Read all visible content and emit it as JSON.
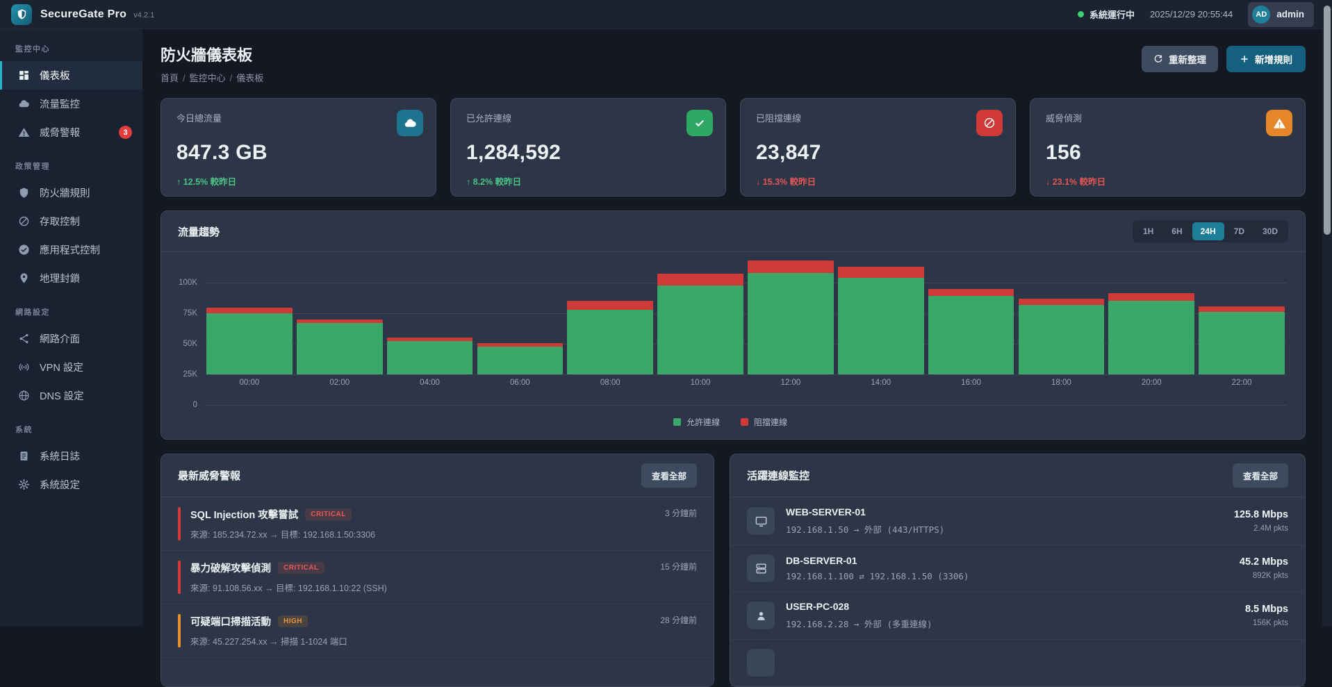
{
  "app": {
    "name": "SecureGate Pro",
    "version": "v4.2.1",
    "status_text": "系統運行中",
    "timestamp": "2025/12/29 20:55:44",
    "user_initials": "AD",
    "user_name": "admin"
  },
  "sidebar": {
    "sections": [
      {
        "label": "監控中心",
        "items": [
          {
            "label": "儀表板",
            "icon": "dashboard-icon",
            "active": true
          },
          {
            "label": "流量監控",
            "icon": "cloud-icon"
          },
          {
            "label": "威脅警報",
            "icon": "alert-triangle-icon",
            "badge": "3"
          }
        ]
      },
      {
        "label": "政策管理",
        "items": [
          {
            "label": "防火牆規則",
            "icon": "shield-icon"
          },
          {
            "label": "存取控制",
            "icon": "no-entry-icon"
          },
          {
            "label": "應用程式控制",
            "icon": "check-circle-icon"
          },
          {
            "label": "地理封鎖",
            "icon": "pin-icon"
          }
        ]
      },
      {
        "label": "網路設定",
        "items": [
          {
            "label": "網路介面",
            "icon": "network-icon"
          },
          {
            "label": "VPN 設定",
            "icon": "signal-icon"
          },
          {
            "label": "DNS 設定",
            "icon": "globe-icon"
          }
        ]
      },
      {
        "label": "系統",
        "items": [
          {
            "label": "系統日誌",
            "icon": "log-icon"
          },
          {
            "label": "系統設定",
            "icon": "gear-icon"
          }
        ]
      }
    ]
  },
  "page": {
    "title": "防火牆儀表板",
    "breadcrumb": [
      "首頁",
      "監控中心",
      "儀表板"
    ],
    "refresh_label": "重新整理",
    "add_rule_label": "新增規則"
  },
  "stats": [
    {
      "label": "今日總流量",
      "value": "847.3 GB",
      "trend": "↑ 12.5% 較昨日",
      "direction": "up",
      "icon": "cloud-icon",
      "icon_bg": "#1d7390"
    },
    {
      "label": "已允許連線",
      "value": "1,284,592",
      "trend": "↑ 8.2% 較昨日",
      "direction": "up",
      "icon": "check-icon",
      "icon_bg": "#2fa866"
    },
    {
      "label": "已阻擋連線",
      "value": "23,847",
      "trend": "↓ 15.3% 較昨日",
      "direction": "down",
      "icon": "no-entry-icon",
      "icon_bg": "#d03a36"
    },
    {
      "label": "威脅偵測",
      "value": "156",
      "trend": "↓ 23.1% 較昨日",
      "direction": "down",
      "icon": "alert-triangle-icon",
      "icon_bg": "#e5862b"
    }
  ],
  "chart_data": {
    "type": "bar",
    "stacked": true,
    "title": "流量趨勢",
    "categories": [
      "00:00",
      "02:00",
      "04:00",
      "06:00",
      "08:00",
      "10:00",
      "12:00",
      "14:00",
      "16:00",
      "18:00",
      "20:00",
      "22:00"
    ],
    "series": [
      {
        "name": "允許連線",
        "color": "#3ba768",
        "values": [
          75000,
          67000,
          52000,
          48000,
          78000,
          98000,
          108000,
          104000,
          89000,
          82000,
          85000,
          76000
        ]
      },
      {
        "name": "阻擋連線",
        "color": "#cd3a38",
        "values": [
          4500,
          3000,
          3000,
          2500,
          7500,
          9500,
          10000,
          9000,
          6000,
          5000,
          6500,
          4500
        ]
      }
    ],
    "y_ticks": [
      "0",
      "25K",
      "50K",
      "75K",
      "100K"
    ],
    "ylim": [
      0,
      112000
    ],
    "grid": true,
    "legend_position": "bottom",
    "time_ranges": [
      "1H",
      "6H",
      "24H",
      "7D",
      "30D"
    ],
    "active_range": "24H"
  },
  "threats": {
    "title": "最新威脅警報",
    "view_all": "查看全部",
    "items": [
      {
        "title": "SQL Injection 攻擊嘗試",
        "severity": "CRITICAL",
        "detail": "來源: 185.234.72.xx → 目標: 192.168.1.50:3306",
        "time": "3 分鐘前"
      },
      {
        "title": "暴力破解攻擊偵測",
        "severity": "CRITICAL",
        "detail": "來源: 91.108.56.xx → 目標: 192.168.1.10:22 (SSH)",
        "time": "15 分鐘前"
      },
      {
        "title": "可疑端口掃描活動",
        "severity": "HIGH",
        "detail": "來源: 45.227.254.xx → 掃描 1-1024 端口",
        "time": "28 分鐘前"
      }
    ]
  },
  "connections": {
    "title": "活躍連線監控",
    "view_all": "查看全部",
    "items": [
      {
        "name": "WEB-SERVER-01",
        "icon": "monitor-icon",
        "detail": "192.168.1.50 → 外部 (443/HTTPS)",
        "rate": "125.8 Mbps",
        "packets": "2.4M pkts"
      },
      {
        "name": "DB-SERVER-01",
        "icon": "server-icon",
        "detail": "192.168.1.100 ⇄ 192.168.1.50 (3306)",
        "rate": "45.2 Mbps",
        "packets": "892K pkts"
      },
      {
        "name": "USER-PC-028",
        "icon": "user-icon",
        "detail": "192.168.2.28 → 外部 (多重連線)",
        "rate": "8.5 Mbps",
        "packets": "156K pkts"
      }
    ]
  },
  "theme": {
    "accent_teal": "#1e7f9a",
    "green": "#3ba768",
    "red": "#cd3a38",
    "orange": "#e5862b",
    "status_green": "#3ecf77",
    "panel": "#2c3646"
  }
}
